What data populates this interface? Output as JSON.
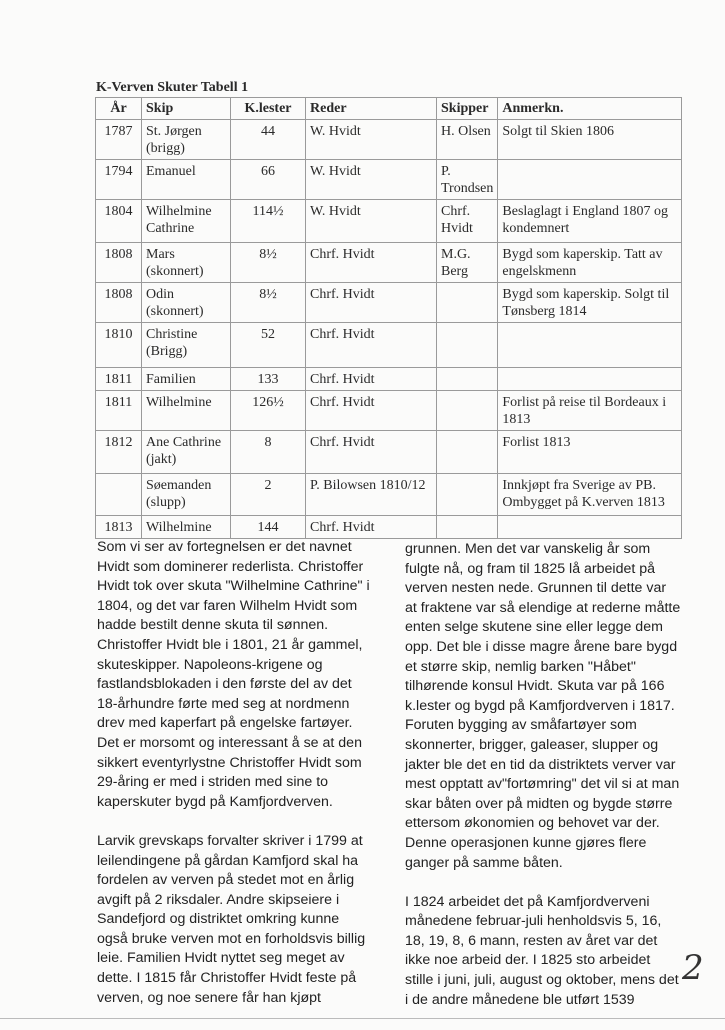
{
  "table": {
    "title": "K-Verven Skuter  Tabell 1",
    "headers": [
      "År",
      "Skip",
      "K.lester",
      "Reder",
      "Skipper",
      "Anmerkn."
    ],
    "rows": [
      [
        "1787",
        "St. Jørgen (brigg)",
        "44",
        "W. Hvidt",
        "H. Olsen",
        "Solgt til Skien 1806"
      ],
      [
        "1794",
        "Emanuel",
        "66",
        "W. Hvidt",
        "P. Trondsen",
        ""
      ],
      [
        "1804",
        "Wilhelmine Cathrine",
        "114½",
        "W. Hvidt",
        "Chrf. Hvidt",
        "Beslaglagt i England 1807 og kondemnert"
      ],
      [
        "1808",
        "Mars (skonnert)",
        "8½",
        "Chrf. Hvidt",
        "M.G. Berg",
        "Bygd som kaperskip. Tatt av engelskmenn"
      ],
      [
        "1808",
        "Odin (skonnert)",
        "8½",
        "Chrf. Hvidt",
        "",
        "Bygd som kaperskip. Solgt til Tønsberg 1814"
      ],
      [
        "1810",
        "Christine (Brigg)",
        "52",
        "Chrf. Hvidt",
        "",
        ""
      ],
      [
        "1811",
        "Familien",
        "133",
        "Chrf. Hvidt",
        "",
        ""
      ],
      [
        "1811",
        "Wilhelmine",
        "126½",
        "Chrf. Hvidt",
        "",
        "Forlist på reise til Bordeaux i 1813"
      ],
      [
        "1812",
        "Ane Cathrine (jakt)",
        "8",
        "Chrf. Hvidt",
        "",
        "Forlist 1813"
      ],
      [
        "",
        "Søemanden (slupp)",
        "2",
        "P. Bilowsen 1810/12",
        "",
        "Innkjøpt fra Sverige av PB. Ombygget på K.verven 1813"
      ],
      [
        "1813",
        "Wilhelmine",
        "144",
        "Chrf. Hvidt",
        "",
        ""
      ]
    ]
  },
  "left_column": [
    [
      "Som vi ser av fortegnelsen er det navnet",
      "Hvidt som dominerer rederlista. Christoffer",
      "Hvidt tok over skuta \"Wilhelmine Cathrine\" i",
      "1804, og det var faren Wilhelm Hvidt som",
      "hadde bestilt denne skuta til sønnen.",
      "Christoffer Hvidt ble i 1801, 21 år gammel,",
      "skuteskipper. Napoleons-krigene og",
      "fastlandsblokaden i den første del av det",
      "18-århundre førte med seg at nordmenn",
      "drev med kaperfart på engelske fartøyer.",
      "Det er morsomt og interessant å se at den",
      "sikkert eventyrlystne  Christoffer Hvidt som",
      "29-åring er med i striden med sine to",
      "kaperskuter bygd på Kamfjordverven."
    ],
    [
      "Larvik grevskaps forvalter skriver i 1799 at",
      "leilendingene på gårdan Kamfjord skal ha",
      "fordelen av verven på stedet mot en årlig",
      "avgift på 2 riksdaler. Andre skipseiere i",
      "Sandefjord og distriktet omkring kunne",
      "også bruke verven mot en forholdsvis billig",
      "leie. Familien Hvidt nyttet seg meget av",
      "dette. I 1815 får Christoffer Hvidt feste på",
      "verven, og noe senere får han kjøpt"
    ]
  ],
  "right_column": [
    [
      "grunnen. Men det var vanskelig år som",
      "fulgte nå, og fram til 1825 lå arbeidet på",
      "verven nesten nede. Grunnen til dette var",
      "at fraktene var så elendige at rederne måtte",
      "enten selge skutene sine eller legge dem",
      "opp. Det ble i disse magre årene bare bygd",
      "et større skip, nemlig barken \"Håbet\"",
      "tilhørende konsul Hvidt. Skuta var på 166",
      "k.lester og bygd på Kamfjordverven i 1817.",
      "Foruten bygging av småfartøyer som",
      "skonnerter, brigger, galeaser, slupper og",
      "jakter ble det en tid da distriktets verver var",
      "mest opptatt av\"fortømring\" det vil si at man",
      "skar båten over på midten og bygde større",
      "ettersom økonomien og behovet var der.",
      "Denne operasjonen kunne gjøres flere",
      "ganger på samme båten."
    ],
    [
      "I 1824 arbeidet det på Kamfjordverveni",
      "månedene februar-juli henholdsvis 5, 16,",
      "18, 19, 8, 6 mann, resten av året var det",
      "ikke noe arbeid der. I 1825 sto arbeidet",
      "stille i juni, juli, august og oktober, mens det",
      "i de andre månedene ble utført 1539"
    ]
  ],
  "page_number": "2"
}
